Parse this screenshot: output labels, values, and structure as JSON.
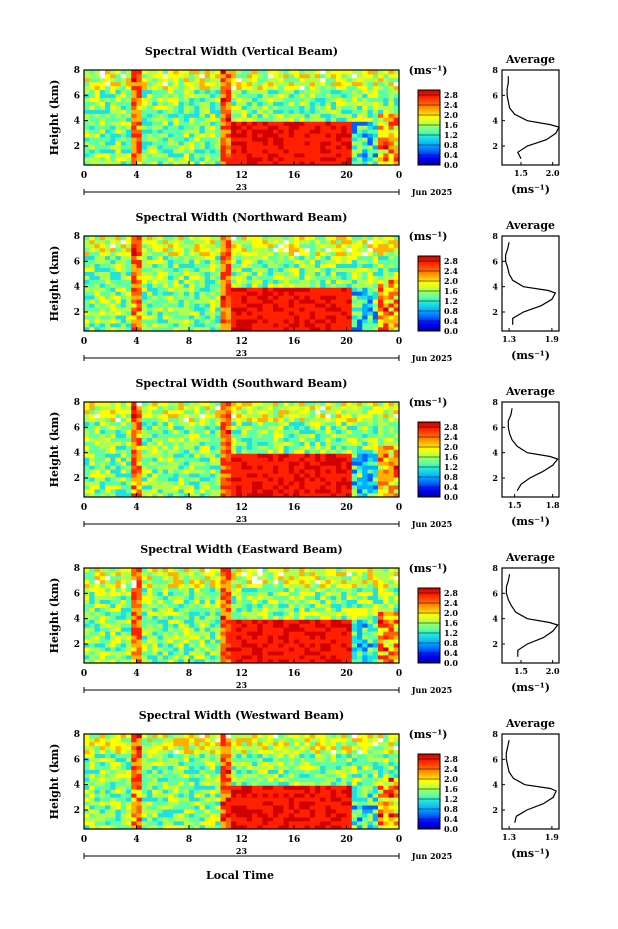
{
  "figure": {
    "x_axis_title": "Local Time",
    "date_label": "Jun 2025",
    "day_label": "23"
  },
  "colorbar": {
    "unit_label": "(ms⁻¹)",
    "ticks": [
      "0.0",
      "0.4",
      "0.8",
      "1.2",
      "1.6",
      "2.0",
      "2.4",
      "2.8"
    ],
    "range": [
      0.0,
      3.0
    ],
    "colors": [
      "#00008f",
      "#0000ff",
      "#0060ff",
      "#00b0ff",
      "#20e0e0",
      "#60ffa0",
      "#b0ff50",
      "#ffff00",
      "#ffb000",
      "#ff6000",
      "#ff2000",
      "#d00000"
    ]
  },
  "chart_data": [
    {
      "type": "heatmap",
      "title": "Spectral Width (Vertical Beam)",
      "ylabel": "Height (km)",
      "xlim": [
        0,
        24
      ],
      "ylim": [
        0.5,
        8.0
      ],
      "x_ticks": [
        "0",
        "4",
        "8",
        "12",
        "16",
        "20",
        "0"
      ],
      "y_ticks": [
        "2",
        "4",
        "6",
        "8"
      ],
      "profile": {
        "title": "Average",
        "xlabel": "(ms⁻¹)",
        "x_ticks": [
          "1.5",
          "2.0"
        ],
        "xlim": [
          1.2,
          2.1
        ],
        "heights": [
          1.0,
          1.5,
          2.0,
          2.5,
          3.0,
          3.5,
          3.7,
          4.0,
          4.5,
          5.0,
          5.5,
          6.0,
          6.5,
          7.0,
          7.5
        ],
        "values": [
          1.5,
          1.45,
          1.6,
          1.9,
          2.05,
          2.1,
          1.95,
          1.6,
          1.4,
          1.32,
          1.3,
          1.28,
          1.28,
          1.3,
          1.3
        ]
      }
    },
    {
      "type": "heatmap",
      "title": "Spectral Width (Northward Beam)",
      "ylabel": "Height (km)",
      "xlim": [
        0,
        24
      ],
      "ylim": [
        0.5,
        8.0
      ],
      "x_ticks": [
        "0",
        "4",
        "8",
        "12",
        "16",
        "20",
        "0"
      ],
      "y_ticks": [
        "2",
        "4",
        "6",
        "8"
      ],
      "profile": {
        "title": "Average",
        "xlabel": "(ms⁻¹)",
        "x_ticks": [
          "1.3",
          "1.9"
        ],
        "xlim": [
          1.2,
          2.0
        ],
        "heights": [
          1.0,
          1.5,
          2.0,
          2.5,
          3.0,
          3.5,
          3.7,
          4.0,
          4.5,
          5.0,
          5.5,
          6.0,
          6.5,
          7.0,
          7.5
        ],
        "values": [
          1.35,
          1.35,
          1.5,
          1.75,
          1.9,
          1.95,
          1.85,
          1.5,
          1.35,
          1.3,
          1.28,
          1.25,
          1.25,
          1.28,
          1.3
        ]
      }
    },
    {
      "type": "heatmap",
      "title": "Spectral Width (Southward Beam)",
      "ylabel": "Height (km)",
      "xlim": [
        0,
        24
      ],
      "ylim": [
        0.5,
        8.0
      ],
      "x_ticks": [
        "0",
        "4",
        "8",
        "12",
        "16",
        "20",
        "0"
      ],
      "y_ticks": [
        "2",
        "4",
        "6",
        "8"
      ],
      "profile": {
        "title": "Average",
        "xlabel": "(ms⁻¹)",
        "x_ticks": [
          "1.5",
          "1.8"
        ],
        "xlim": [
          1.4,
          1.85
        ],
        "heights": [
          1.0,
          1.5,
          2.0,
          2.5,
          3.0,
          3.5,
          3.7,
          4.0,
          4.5,
          5.0,
          5.5,
          6.0,
          6.5,
          7.0,
          7.5
        ],
        "values": [
          1.52,
          1.55,
          1.62,
          1.72,
          1.8,
          1.84,
          1.78,
          1.6,
          1.52,
          1.48,
          1.46,
          1.45,
          1.45,
          1.47,
          1.48
        ]
      }
    },
    {
      "type": "heatmap",
      "title": "Spectral Width (Eastward Beam)",
      "ylabel": "Height (km)",
      "xlim": [
        0,
        24
      ],
      "ylim": [
        0.5,
        8.0
      ],
      "x_ticks": [
        "0",
        "4",
        "8",
        "12",
        "16",
        "20",
        "0"
      ],
      "y_ticks": [
        "2",
        "4",
        "6",
        "8"
      ],
      "profile": {
        "title": "Average",
        "xlabel": "(ms⁻¹)",
        "x_ticks": [
          "1.5",
          "2.0"
        ],
        "xlim": [
          1.2,
          2.1
        ],
        "heights": [
          1.0,
          1.5,
          2.0,
          2.5,
          3.0,
          3.5,
          3.7,
          4.0,
          4.5,
          5.0,
          5.5,
          6.0,
          6.5,
          7.0,
          7.5
        ],
        "values": [
          1.45,
          1.45,
          1.6,
          1.85,
          2.0,
          2.08,
          1.95,
          1.6,
          1.42,
          1.35,
          1.3,
          1.27,
          1.27,
          1.3,
          1.32
        ]
      }
    },
    {
      "type": "heatmap",
      "title": "Spectral Width (Westward Beam)",
      "ylabel": "Height (km)",
      "xlim": [
        0,
        24
      ],
      "ylim": [
        0.5,
        8.0
      ],
      "x_ticks": [
        "0",
        "4",
        "8",
        "12",
        "16",
        "20",
        "0"
      ],
      "y_ticks": [
        "2",
        "4",
        "6",
        "8"
      ],
      "profile": {
        "title": "Average",
        "xlabel": "(ms⁻¹)",
        "x_ticks": [
          "1.3",
          "1.9"
        ],
        "xlim": [
          1.2,
          2.0
        ],
        "heights": [
          1.0,
          1.5,
          2.0,
          2.5,
          3.0,
          3.5,
          3.7,
          4.0,
          4.5,
          5.0,
          5.5,
          6.0,
          6.5,
          7.0,
          7.5
        ],
        "values": [
          1.38,
          1.4,
          1.55,
          1.78,
          1.92,
          1.96,
          1.88,
          1.52,
          1.36,
          1.3,
          1.28,
          1.26,
          1.26,
          1.28,
          1.3
        ]
      }
    }
  ]
}
